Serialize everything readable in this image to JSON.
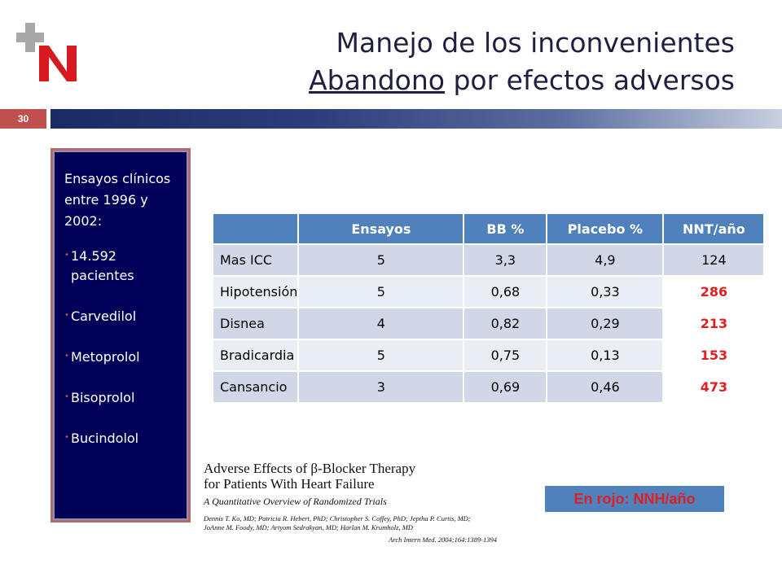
{
  "slide_number": "30",
  "title": {
    "line1": "Manejo de los inconvenientes",
    "line2_underlined": "Abandono",
    "line2_rest": " por efectos adversos"
  },
  "sidebar": {
    "intro": "Ensayos clínicos entre 1996 y 2002:",
    "items": [
      "14.592 pacientes",
      "Carvedilol",
      "Metoprolol",
      "Bisoprolol",
      "Bucindolol"
    ]
  },
  "table": {
    "headers": [
      "",
      "Ensayos",
      "BB %",
      "Placebo %",
      "NNT/año"
    ],
    "rows": [
      {
        "label": "Mas ICC",
        "ensayos": "5",
        "bb": "3,3",
        "placebo": "4,9",
        "nnt": "124"
      },
      {
        "label": "Hipotensión",
        "ensayos": "5",
        "bb": "0,68",
        "placebo": "0,33",
        "nnt": "286"
      },
      {
        "label": "Disnea",
        "ensayos": "4",
        "bb": "0,82",
        "placebo": "0,29",
        "nnt": "213"
      },
      {
        "label": "Bradicardia",
        "ensayos": "5",
        "bb": "0,75",
        "placebo": "0,13",
        "nnt": "153"
      },
      {
        "label": "Cansancio",
        "ensayos": "3",
        "bb": "0,69",
        "placebo": "0,46",
        "nnt": "473"
      }
    ]
  },
  "reference": {
    "title_line1": "Adverse Effects of β-Blocker Therapy",
    "title_line2": "for Patients With Heart Failure",
    "subtitle": "A Quantitative Overview of Randomized Trials",
    "authors_line1": "Dennis T. Ko, MD; Patricia R. Hebert, PhD; Christopher S. Coffey, PhD; Jeptha P. Curtis, MD;",
    "authors_line2": "JoAnne M. Foody, MD; Artyom Sedrakyan, MD; Harlan M. Krumholz, MD",
    "citation": "Arch Intern Med. 2004;164:1389-1394"
  },
  "legend": "En rojo: NNH/año",
  "colors": {
    "accent_red": "#c0504d",
    "table_header": "#4f81bd",
    "sidebar_bg": "#000058",
    "highlight_red": "#e02020"
  }
}
